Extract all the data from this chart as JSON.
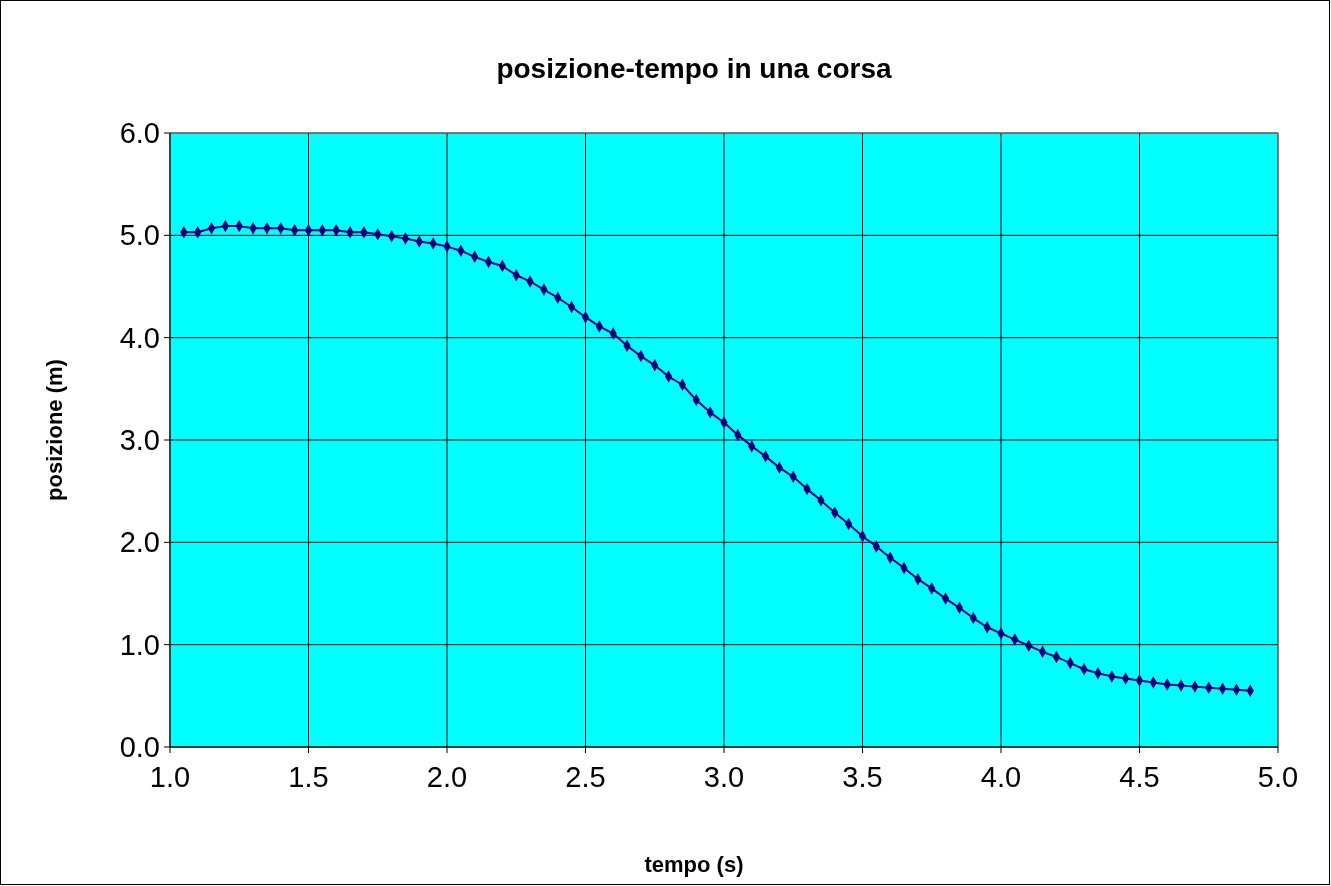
{
  "chart_data": {
    "type": "line",
    "title": "posizione-tempo in una corsa",
    "xlabel": "tempo (s)",
    "ylabel": "posizione (m)",
    "x": [
      1.05,
      1.1,
      1.15,
      1.2,
      1.25,
      1.3,
      1.35,
      1.4,
      1.45,
      1.5,
      1.55,
      1.6,
      1.65,
      1.7,
      1.75,
      1.8,
      1.85,
      1.9,
      1.95,
      2.0,
      2.05,
      2.1,
      2.15,
      2.2,
      2.25,
      2.3,
      2.35,
      2.4,
      2.45,
      2.5,
      2.55,
      2.6,
      2.65,
      2.7,
      2.75,
      2.8,
      2.85,
      2.9,
      2.95,
      3.0,
      3.05,
      3.1,
      3.15,
      3.2,
      3.25,
      3.3,
      3.35,
      3.4,
      3.45,
      3.5,
      3.55,
      3.6,
      3.65,
      3.7,
      3.75,
      3.8,
      3.85,
      3.9,
      3.95,
      4.0,
      4.05,
      4.1,
      4.15,
      4.2,
      4.25,
      4.3,
      4.35,
      4.4,
      4.45,
      4.5,
      4.55,
      4.6,
      4.65,
      4.7,
      4.75,
      4.8,
      4.85,
      4.9
    ],
    "series": [
      {
        "color": "#000080",
        "values": [
          5.03,
          5.03,
          5.07,
          5.09,
          5.09,
          5.07,
          5.07,
          5.07,
          5.05,
          5.05,
          5.05,
          5.05,
          5.03,
          5.03,
          5.01,
          4.99,
          4.97,
          4.94,
          4.92,
          4.89,
          4.85,
          4.79,
          4.74,
          4.7,
          4.61,
          4.55,
          4.47,
          4.39,
          4.3,
          4.2,
          4.11,
          4.04,
          3.92,
          3.82,
          3.73,
          3.62,
          3.54,
          3.39,
          3.27,
          3.17,
          3.05,
          2.94,
          2.84,
          2.73,
          2.64,
          2.52,
          2.41,
          2.29,
          2.18,
          2.06,
          1.96,
          1.85,
          1.75,
          1.64,
          1.55,
          1.45,
          1.36,
          1.26,
          1.17,
          1.11,
          1.05,
          0.99,
          0.93,
          0.88,
          0.82,
          0.76,
          0.72,
          0.69,
          0.67,
          0.65,
          0.63,
          0.61,
          0.6,
          0.59,
          0.58,
          0.57,
          0.56,
          0.55
        ]
      }
    ],
    "xlim": [
      1.0,
      5.0
    ],
    "xticks": [
      {
        "value": 1.0,
        "label": "1.0"
      },
      {
        "value": 1.5,
        "label": "1.5"
      },
      {
        "value": 2.0,
        "label": "2.0"
      },
      {
        "value": 2.5,
        "label": "2.5"
      },
      {
        "value": 3.0,
        "label": "3.0"
      },
      {
        "value": 3.5,
        "label": "3.5"
      },
      {
        "value": 4.0,
        "label": "4.0"
      },
      {
        "value": 4.5,
        "label": "4.5"
      },
      {
        "value": 5.0,
        "label": "5.0"
      }
    ],
    "ylim": [
      0,
      6
    ],
    "yticks": [
      {
        "value": 0,
        "label": "0.0"
      },
      {
        "value": 1,
        "label": "1.0"
      },
      {
        "value": 2,
        "label": "2.0"
      },
      {
        "value": 3,
        "label": "3.0"
      },
      {
        "value": 4,
        "label": "4.0"
      },
      {
        "value": 5,
        "label": "5.0"
      },
      {
        "value": 6,
        "label": "6.0"
      }
    ],
    "grid": true,
    "marker": "diamond",
    "line_style": "solid"
  }
}
